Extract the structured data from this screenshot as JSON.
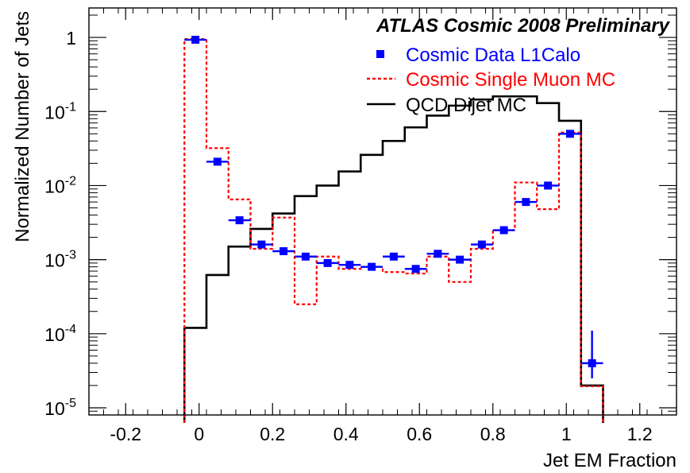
{
  "chart_data": {
    "type": "histogram",
    "header": "ATLAS Cosmic 2008 Preliminary",
    "xlabel": "Jet EM Fraction",
    "ylabel": "Normalized Number of Jets",
    "xlim": [
      -0.3,
      1.3
    ],
    "ylim": [
      8e-06,
      2.5
    ],
    "y_scale": "log",
    "grid": false,
    "legend_position": "top-right",
    "x_ticks": [
      {
        "value": -0.2,
        "label": "-0.2"
      },
      {
        "value": 0,
        "label": "0"
      },
      {
        "value": 0.2,
        "label": "0.2"
      },
      {
        "value": 0.4,
        "label": "0.4"
      },
      {
        "value": 0.6,
        "label": "0.6"
      },
      {
        "value": 0.8,
        "label": "0.8"
      },
      {
        "value": 1,
        "label": "1"
      },
      {
        "value": 1.2,
        "label": "1.2"
      }
    ],
    "y_ticks": [
      {
        "value": 1e-05,
        "base": "10",
        "exp": "-5"
      },
      {
        "value": 0.0001,
        "base": "10",
        "exp": "-4"
      },
      {
        "value": 0.001,
        "base": "10",
        "exp": "-3"
      },
      {
        "value": 0.01,
        "base": "10",
        "exp": "-2"
      },
      {
        "value": 0.1,
        "base": "10",
        "exp": "-1"
      },
      {
        "value": 1,
        "base": "1",
        "exp": ""
      }
    ],
    "bin_edges": [
      -0.04,
      0.02,
      0.08,
      0.14,
      0.2,
      0.26,
      0.32,
      0.38,
      0.44,
      0.5,
      0.56,
      0.62,
      0.68,
      0.74,
      0.8,
      0.86,
      0.92,
      0.98,
      1.04,
      1.1
    ],
    "series": [
      {
        "name": "Cosmic Data L1Calo",
        "style": "markers",
        "color": "#0000ff",
        "values": [
          0.93,
          0.021,
          0.0034,
          0.0016,
          0.0013,
          0.0011,
          0.0009,
          0.00085,
          0.0008,
          0.0011,
          0.00075,
          0.0012,
          0.001,
          0.0016,
          0.0025,
          0.006,
          0.01,
          0.05,
          4e-05
        ],
        "y_errors": [
          null,
          null,
          null,
          null,
          null,
          null,
          null,
          null,
          null,
          null,
          null,
          null,
          null,
          null,
          null,
          null,
          null,
          null,
          [
            1.5e-05,
            7e-05
          ]
        ]
      },
      {
        "name": "Cosmic Single Muon MC",
        "style": "dashed-step",
        "color": "#ff0000",
        "values": [
          0.95,
          0.032,
          0.0065,
          0.0014,
          0.0037,
          0.00025,
          0.0011,
          0.00075,
          0.0008,
          0.00068,
          0.00065,
          0.0011,
          0.0005,
          0.0014,
          0.0025,
          0.011,
          0.0048,
          0.052,
          1.95e-05
        ]
      },
      {
        "name": "QCD Dijet MC",
        "style": "step",
        "color": "#000000",
        "values": [
          0.00012,
          0.00062,
          0.0015,
          0.0026,
          0.0042,
          0.0072,
          0.01,
          0.0155,
          0.026,
          0.04,
          0.061,
          0.088,
          0.12,
          0.145,
          0.16,
          0.16,
          0.13,
          0.075,
          2e-05
        ]
      }
    ]
  }
}
